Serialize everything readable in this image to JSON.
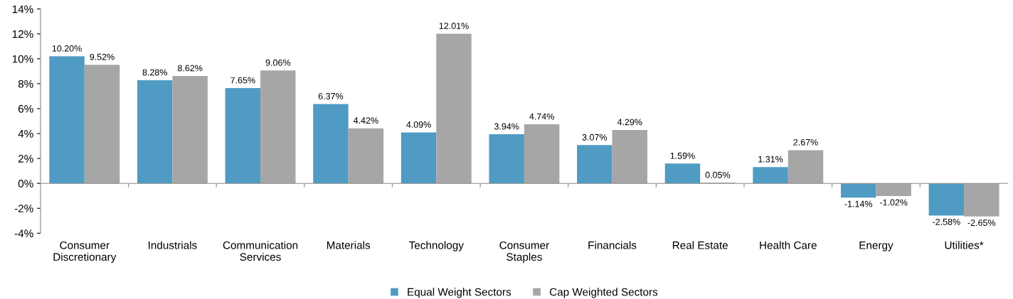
{
  "chart_data": {
    "type": "bar",
    "categories": [
      "Consumer\nDiscretionary",
      "Industrials",
      "Communication\nServices",
      "Materials",
      "Technology",
      "Consumer\nStaples",
      "Financials",
      "Real Estate",
      "Health Care",
      "Energy",
      "Utilities*"
    ],
    "series": [
      {
        "name": "Equal Weight Sectors",
        "color": "#4f9bc4",
        "values": [
          10.2,
          8.28,
          7.65,
          6.37,
          4.09,
          3.94,
          3.07,
          1.59,
          1.31,
          -1.14,
          -2.58
        ],
        "value_labels": [
          "10.20%",
          "8.28%",
          "7.65%",
          "6.37%",
          "4.09%",
          "3.94%",
          "3.07%",
          "1.59%",
          "1.31%",
          "-1.14%",
          "-2.58%"
        ]
      },
      {
        "name": "Cap Weighted Sectors",
        "color": "#a6a6a6",
        "values": [
          9.52,
          8.62,
          9.06,
          4.42,
          12.01,
          4.74,
          4.29,
          0.05,
          2.67,
          -1.02,
          -2.65
        ],
        "value_labels": [
          "9.52%",
          "8.62%",
          "9.06%",
          "4.42%",
          "12.01%",
          "4.74%",
          "4.29%",
          "0.05%",
          "2.67%",
          "-1.02%",
          "-2.65%"
        ]
      }
    ],
    "ylim": [
      -4,
      14
    ],
    "yticks": [
      {
        "value": -4,
        "label": "-4%"
      },
      {
        "value": -2,
        "label": "-2%"
      },
      {
        "value": 0,
        "label": "0%"
      },
      {
        "value": 2,
        "label": "2%"
      },
      {
        "value": 4,
        "label": "4%"
      },
      {
        "value": 6,
        "label": "6%"
      },
      {
        "value": 8,
        "label": "8%"
      },
      {
        "value": 10,
        "label": "10%"
      },
      {
        "value": 12,
        "label": "12%"
      },
      {
        "value": 14,
        "label": "14%"
      }
    ],
    "legend": "bottom"
  }
}
